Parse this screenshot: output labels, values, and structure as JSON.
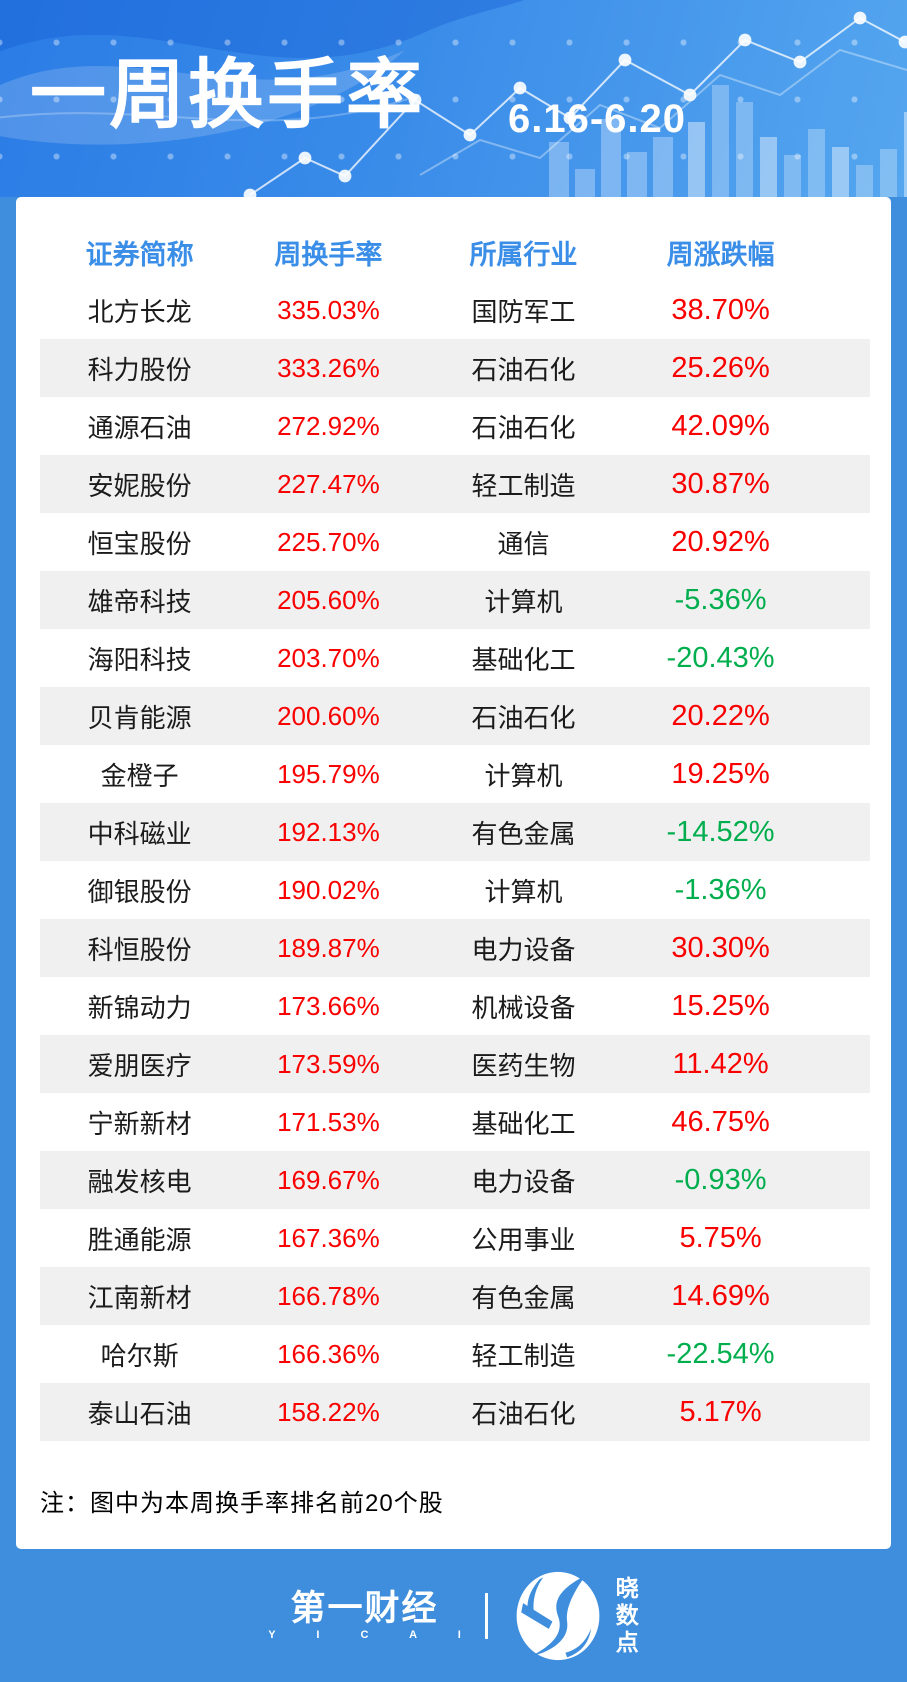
{
  "header": {
    "title": "一周换手率",
    "date_range": "6.16-6.20"
  },
  "chart_data": {
    "type": "table",
    "title": "一周换手率",
    "subtitle": "6.16-6.20",
    "columns": [
      "证券简称",
      "周换手率",
      "所属行业",
      "周涨跌幅"
    ],
    "rows": [
      {
        "name": "北方长龙",
        "turnover": "335.03%",
        "industry": "国防军工",
        "change": "38.70%",
        "direction": "up"
      },
      {
        "name": "科力股份",
        "turnover": "333.26%",
        "industry": "石油石化",
        "change": "25.26%",
        "direction": "up"
      },
      {
        "name": "通源石油",
        "turnover": "272.92%",
        "industry": "石油石化",
        "change": "42.09%",
        "direction": "up"
      },
      {
        "name": "安妮股份",
        "turnover": "227.47%",
        "industry": "轻工制造",
        "change": "30.87%",
        "direction": "up"
      },
      {
        "name": "恒宝股份",
        "turnover": "225.70%",
        "industry": "通信",
        "change": "20.92%",
        "direction": "up"
      },
      {
        "name": "雄帝科技",
        "turnover": "205.60%",
        "industry": "计算机",
        "change": "-5.36%",
        "direction": "down"
      },
      {
        "name": "海阳科技",
        "turnover": "203.70%",
        "industry": "基础化工",
        "change": "-20.43%",
        "direction": "down"
      },
      {
        "name": "贝肯能源",
        "turnover": "200.60%",
        "industry": "石油石化",
        "change": "20.22%",
        "direction": "up"
      },
      {
        "name": "金橙子",
        "turnover": "195.79%",
        "industry": "计算机",
        "change": "19.25%",
        "direction": "up"
      },
      {
        "name": "中科磁业",
        "turnover": "192.13%",
        "industry": "有色金属",
        "change": "-14.52%",
        "direction": "down"
      },
      {
        "name": "御银股份",
        "turnover": "190.02%",
        "industry": "计算机",
        "change": "-1.36%",
        "direction": "down"
      },
      {
        "name": "科恒股份",
        "turnover": "189.87%",
        "industry": "电力设备",
        "change": "30.30%",
        "direction": "up"
      },
      {
        "name": "新锦动力",
        "turnover": "173.66%",
        "industry": "机械设备",
        "change": "15.25%",
        "direction": "up"
      },
      {
        "name": "爱朋医疗",
        "turnover": "173.59%",
        "industry": "医药生物",
        "change": "11.42%",
        "direction": "up"
      },
      {
        "name": "宁新新材",
        "turnover": "171.53%",
        "industry": "基础化工",
        "change": "46.75%",
        "direction": "up"
      },
      {
        "name": "融发核电",
        "turnover": "169.67%",
        "industry": "电力设备",
        "change": "-0.93%",
        "direction": "down"
      },
      {
        "name": "胜通能源",
        "turnover": "167.36%",
        "industry": "公用事业",
        "change": "5.75%",
        "direction": "up"
      },
      {
        "name": "江南新材",
        "turnover": "166.78%",
        "industry": "有色金属",
        "change": "14.69%",
        "direction": "up"
      },
      {
        "name": "哈尔斯",
        "turnover": "166.36%",
        "industry": "轻工制造",
        "change": "-22.54%",
        "direction": "down"
      },
      {
        "name": "泰山石油",
        "turnover": "158.22%",
        "industry": "石油石化",
        "change": "5.17%",
        "direction": "up"
      }
    ],
    "note": "注：图中为本周换手率排名前20个股",
    "legend_position": "none",
    "grid": false
  },
  "footer": {
    "brand_name": "第一财经",
    "brand_sub": "Y I C A I",
    "product_name": "晓数点",
    "product_chars": [
      "晓",
      "数",
      "点"
    ]
  },
  "colors": {
    "banner_blue_dark": "#2b7ce5",
    "banner_blue_light": "#55a6ef",
    "frame_blue": "#3e8edd",
    "header_text_blue": "#3a8ee8",
    "positive_red": "#fa0000",
    "negative_green": "#00ae4e",
    "row_stripe_gray": "#f0f0f0"
  }
}
